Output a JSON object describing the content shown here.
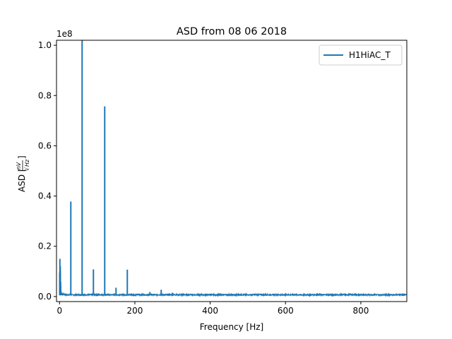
{
  "chart_data": {
    "type": "line",
    "title": "ASD from 08 06 2018",
    "xlabel": "Frequency [Hz]",
    "ylabel": {
      "prefix": "ASD [",
      "numerator": "nV",
      "denominator": "Hz",
      "suffix": "]"
    },
    "y_offset_label": "1e8",
    "xlim": [
      -8,
      922
    ],
    "ylim": [
      -0.02,
      1.02
    ],
    "y_scale_factor": 100000000,
    "x_ticks": [
      0,
      200,
      400,
      600,
      800
    ],
    "x_tick_labels": [
      "0",
      "200",
      "400",
      "600",
      "800"
    ],
    "y_ticks": [
      0.0,
      0.2,
      0.4,
      0.6,
      0.8,
      1.0
    ],
    "y_tick_labels": [
      "0.0",
      "0.2",
      "0.4",
      "0.6",
      "0.8",
      "1.0"
    ],
    "grid": false,
    "legend_position": "top-right",
    "series": [
      {
        "name": "H1HiAC_T",
        "color": "#1f77b4",
        "baseline_level": 0.005,
        "peaks": [
          {
            "x": 0.5,
            "y": 0.095
          },
          {
            "x": 1,
            "y": 0.15
          },
          {
            "x": 2,
            "y": 0.12
          },
          {
            "x": 4,
            "y": 0.02
          },
          {
            "x": 6,
            "y": 0.015
          },
          {
            "x": 30,
            "y": 0.378
          },
          {
            "x": 60,
            "y": 1.02
          },
          {
            "x": 90,
            "y": 0.108
          },
          {
            "x": 120,
            "y": 0.757
          },
          {
            "x": 150,
            "y": 0.035
          },
          {
            "x": 180,
            "y": 0.107
          },
          {
            "x": 240,
            "y": 0.018
          },
          {
            "x": 270,
            "y": 0.027
          },
          {
            "x": 300,
            "y": 0.015
          },
          {
            "x": 330,
            "y": 0.012
          }
        ]
      }
    ]
  }
}
